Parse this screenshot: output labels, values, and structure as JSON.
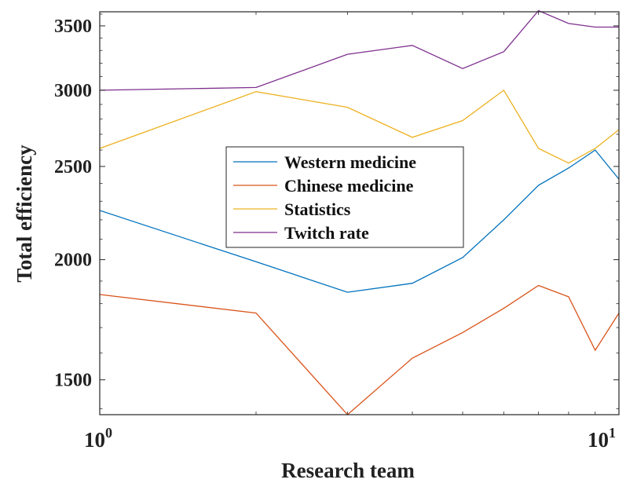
{
  "chart_data": {
    "type": "line",
    "xlabel": "Research team",
    "ylabel": "Total efficiency",
    "x_scale": "log",
    "y_scale": "log",
    "xlim": [
      1,
      10
    ],
    "ylim": [
      1380,
      3620
    ],
    "x_ticks": [
      {
        "value": 1,
        "base": "10",
        "exp": "0"
      },
      {
        "value": 10,
        "base": "10",
        "exp": "1"
      }
    ],
    "y_ticks": [
      1500,
      2000,
      2500,
      3000,
      3500
    ],
    "grid": false,
    "legend_position": "center",
    "x": [
      1,
      2,
      3,
      4,
      5,
      6,
      7,
      8,
      9,
      10
    ],
    "series": [
      {
        "name": "Western medicine",
        "color": "#0072BD",
        "values": [
          2250,
          1990,
          1850,
          1890,
          2010,
          2200,
          2390,
          2490,
          2600,
          2425
        ]
      },
      {
        "name": "Chinese medicine",
        "color": "#D95319",
        "values": [
          1840,
          1760,
          1380,
          1580,
          1680,
          1780,
          1880,
          1830,
          1610,
          1760
        ]
      },
      {
        "name": "Statistics",
        "color": "#EDB120",
        "values": [
          2610,
          2990,
          2880,
          2680,
          2790,
          3000,
          2610,
          2520,
          2610,
          2730
        ]
      },
      {
        "name": "Twitch rate",
        "color": "#7E2F8E",
        "values": [
          3000,
          3020,
          3270,
          3340,
          3160,
          3290,
          3630,
          3520,
          3490,
          3490
        ]
      }
    ]
  }
}
